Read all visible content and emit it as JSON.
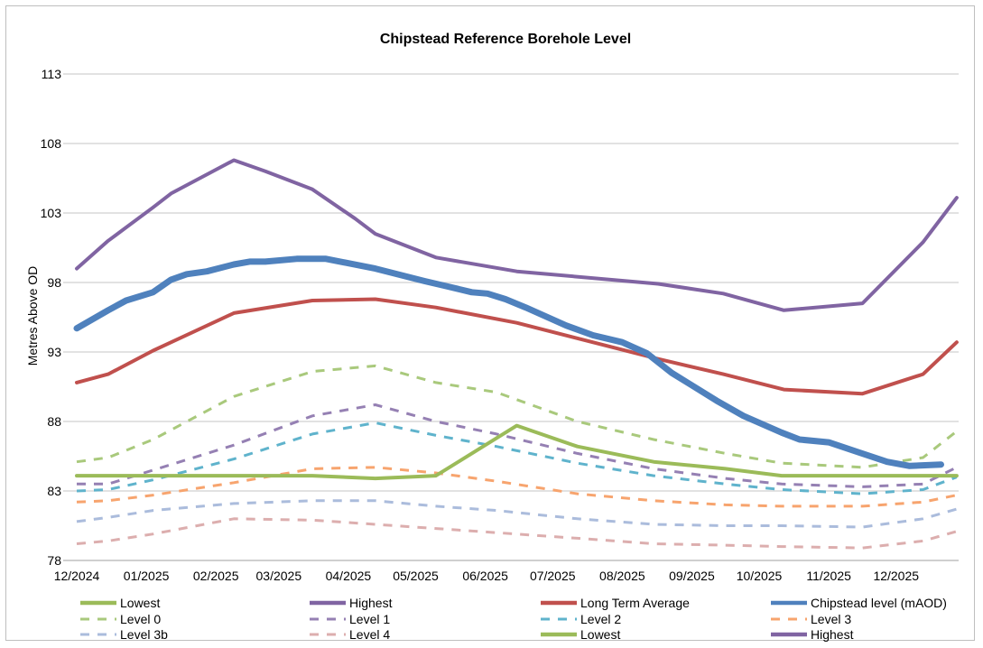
{
  "chart_data": {
    "type": "line",
    "title": "Chipstead Reference Borehole Level",
    "ylabel": "Metres Above OD",
    "xlabel": "",
    "ylim": [
      78,
      113
    ],
    "yticks": [
      "78",
      "83",
      "88",
      "93",
      "98",
      "103",
      "108",
      "113"
    ],
    "xlim": [
      "2024-12-01",
      "2025-12-31"
    ],
    "xticks": [
      {
        "date": "2024-12-01",
        "label": "12/2024"
      },
      {
        "date": "2025-01-01",
        "label": "01/2025"
      },
      {
        "date": "2025-02-01",
        "label": "02/2025"
      },
      {
        "date": "2025-03-01",
        "label": "03/2025"
      },
      {
        "date": "2025-04-01",
        "label": "04/2025"
      },
      {
        "date": "2025-05-01",
        "label": "05/2025"
      },
      {
        "date": "2025-06-01",
        "label": "06/2025"
      },
      {
        "date": "2025-07-01",
        "label": "07/2025"
      },
      {
        "date": "2025-08-01",
        "label": "08/2025"
      },
      {
        "date": "2025-09-01",
        "label": "09/2025"
      },
      {
        "date": "2025-10-01",
        "label": "10/2025"
      },
      {
        "date": "2025-11-01",
        "label": "11/2025"
      },
      {
        "date": "2025-12-01",
        "label": "12/2025"
      }
    ],
    "grid": true,
    "legend_position": "bottom",
    "level_dates": [
      "2024-12-01",
      "2024-12-15",
      "2025-01-04",
      "2025-02-09",
      "2025-03-16",
      "2025-04-13",
      "2025-05-10",
      "2025-06-06",
      "2025-07-12",
      "2025-08-15",
      "2025-09-16",
      "2025-10-11",
      "2025-11-16",
      "2025-12-13",
      "2025-12-28"
    ],
    "series": [
      {
        "name": "Level 4",
        "color": "#dcaeae",
        "dashed": true,
        "values": [
          79.2,
          79.4,
          79.9,
          81.0,
          80.9,
          80.6,
          80.3,
          80.0,
          79.6,
          79.2,
          79.1,
          79.0,
          78.9,
          79.4,
          80.1
        ]
      },
      {
        "name": "Level 3b",
        "color": "#abbcdc",
        "dashed": true,
        "values": [
          80.8,
          81.1,
          81.6,
          82.1,
          82.3,
          82.3,
          81.9,
          81.6,
          81.0,
          80.6,
          80.5,
          80.5,
          80.4,
          81.0,
          81.7
        ]
      },
      {
        "name": "Level 3",
        "color": "#f7a46e",
        "dashed": true,
        "values": [
          82.2,
          82.3,
          82.7,
          83.6,
          84.6,
          84.7,
          84.3,
          83.7,
          82.8,
          82.3,
          82.0,
          81.9,
          81.9,
          82.2,
          82.7
        ]
      },
      {
        "name": "Level 2",
        "color": "#5fb3cc",
        "dashed": true,
        "values": [
          83.0,
          83.1,
          83.8,
          85.3,
          87.1,
          87.9,
          87.0,
          86.2,
          85.0,
          84.1,
          83.5,
          83.1,
          82.8,
          83.1,
          84.0
        ]
      },
      {
        "name": "Level 1",
        "color": "#9580b3",
        "dashed": true,
        "values": [
          83.5,
          83.5,
          84.5,
          86.3,
          88.4,
          89.2,
          88.0,
          87.1,
          85.7,
          84.6,
          83.9,
          83.5,
          83.3,
          83.5,
          84.7
        ]
      },
      {
        "name": "Level 0",
        "color": "#a9c97c",
        "dashed": true,
        "values": [
          85.1,
          85.4,
          86.7,
          89.8,
          91.6,
          92.0,
          90.8,
          90.1,
          88.0,
          86.7,
          85.7,
          85.0,
          84.7,
          85.4,
          87.3
        ]
      },
      {
        "name": "Lowest",
        "color": "#9bbb59",
        "width": 4,
        "points": [
          [
            "2024-12-01",
            84.1
          ],
          [
            "2025-03-16",
            84.1
          ],
          [
            "2025-04-13",
            83.9
          ],
          [
            "2025-05-10",
            84.1
          ],
          [
            "2025-06-15",
            87.7
          ],
          [
            "2025-07-12",
            86.2
          ],
          [
            "2025-08-15",
            85.1
          ],
          [
            "2025-09-16",
            84.6
          ],
          [
            "2025-10-11",
            84.1
          ],
          [
            "2025-12-28",
            84.1
          ]
        ]
      },
      {
        "name": "Long Term Average",
        "color": "#c0504d",
        "width": 4,
        "points": [
          [
            "2024-12-01",
            90.8
          ],
          [
            "2024-12-15",
            91.4
          ],
          [
            "2025-01-04",
            93.1
          ],
          [
            "2025-02-09",
            95.8
          ],
          [
            "2025-03-16",
            96.7
          ],
          [
            "2025-04-13",
            96.8
          ],
          [
            "2025-05-10",
            96.2
          ],
          [
            "2025-06-15",
            95.1
          ],
          [
            "2025-08-17",
            92.5
          ],
          [
            "2025-09-15",
            91.4
          ],
          [
            "2025-10-12",
            90.3
          ],
          [
            "2025-11-16",
            90.0
          ],
          [
            "2025-12-13",
            91.4
          ],
          [
            "2025-12-28",
            93.7
          ]
        ]
      },
      {
        "name": "Highest",
        "color": "#8064a2",
        "width": 4,
        "points": [
          [
            "2024-12-01",
            99.0
          ],
          [
            "2024-12-15",
            101.0
          ],
          [
            "2025-01-04",
            103.4
          ],
          [
            "2025-01-12",
            104.4
          ],
          [
            "2025-02-09",
            106.8
          ],
          [
            "2025-02-23",
            106.0
          ],
          [
            "2025-03-16",
            104.7
          ],
          [
            "2025-04-04",
            102.6
          ],
          [
            "2025-04-13",
            101.5
          ],
          [
            "2025-05-10",
            99.8
          ],
          [
            "2025-06-15",
            98.8
          ],
          [
            "2025-08-17",
            97.9
          ],
          [
            "2025-09-15",
            97.2
          ],
          [
            "2025-10-12",
            96.0
          ],
          [
            "2025-11-16",
            96.5
          ],
          [
            "2025-12-13",
            100.9
          ],
          [
            "2025-12-28",
            104.1
          ]
        ]
      },
      {
        "name": "Chipstead level (mAOD)",
        "color": "#4f81bd",
        "width": 7,
        "points": [
          [
            "2024-12-01",
            94.7
          ],
          [
            "2024-12-15",
            96.0
          ],
          [
            "2024-12-23",
            96.7
          ],
          [
            "2025-01-04",
            97.3
          ],
          [
            "2025-01-12",
            98.2
          ],
          [
            "2025-01-19",
            98.6
          ],
          [
            "2025-01-28",
            98.8
          ],
          [
            "2025-02-09",
            99.3
          ],
          [
            "2025-02-16",
            99.5
          ],
          [
            "2025-02-23",
            99.5
          ],
          [
            "2025-03-09",
            99.7
          ],
          [
            "2025-03-22",
            99.7
          ],
          [
            "2025-04-13",
            99.0
          ],
          [
            "2025-05-05",
            98.1
          ],
          [
            "2025-05-13",
            97.8
          ],
          [
            "2025-05-26",
            97.3
          ],
          [
            "2025-06-02",
            97.2
          ],
          [
            "2025-06-10",
            96.8
          ],
          [
            "2025-06-19",
            96.2
          ],
          [
            "2025-07-07",
            94.9
          ],
          [
            "2025-07-19",
            94.2
          ],
          [
            "2025-08-01",
            93.7
          ],
          [
            "2025-08-12",
            92.9
          ],
          [
            "2025-08-23",
            91.5
          ],
          [
            "2025-09-12",
            89.5
          ],
          [
            "2025-09-24",
            88.4
          ],
          [
            "2025-10-11",
            87.2
          ],
          [
            "2025-10-19",
            86.7
          ],
          [
            "2025-11-01",
            86.5
          ],
          [
            "2025-11-14",
            85.8
          ],
          [
            "2025-11-27",
            85.1
          ],
          [
            "2025-12-07",
            84.8
          ],
          [
            "2025-12-21",
            84.9
          ]
        ]
      }
    ],
    "legend": [
      {
        "label": "Lowest",
        "color": "#9bbb59",
        "dashed": false
      },
      {
        "label": "Highest",
        "color": "#8064a2",
        "dashed": false
      },
      {
        "label": "Long Term Average",
        "color": "#c0504d",
        "dashed": false
      },
      {
        "label": "Chipstead level (mAOD)",
        "color": "#4f81bd",
        "dashed": false
      },
      {
        "label": "Level 0",
        "color": "#a9c97c",
        "dashed": true
      },
      {
        "label": "Level 1",
        "color": "#9580b3",
        "dashed": true
      },
      {
        "label": "Level 2",
        "color": "#5fb3cc",
        "dashed": true
      },
      {
        "label": "Level 3",
        "color": "#f7a46e",
        "dashed": true
      },
      {
        "label": "Level 3b",
        "color": "#abbcdc",
        "dashed": true
      },
      {
        "label": "Level 4",
        "color": "#dcaeae",
        "dashed": true
      },
      {
        "label": "Lowest",
        "color": "#9bbb59",
        "dashed": false
      },
      {
        "label": "Highest",
        "color": "#8064a2",
        "dashed": false
      }
    ]
  }
}
